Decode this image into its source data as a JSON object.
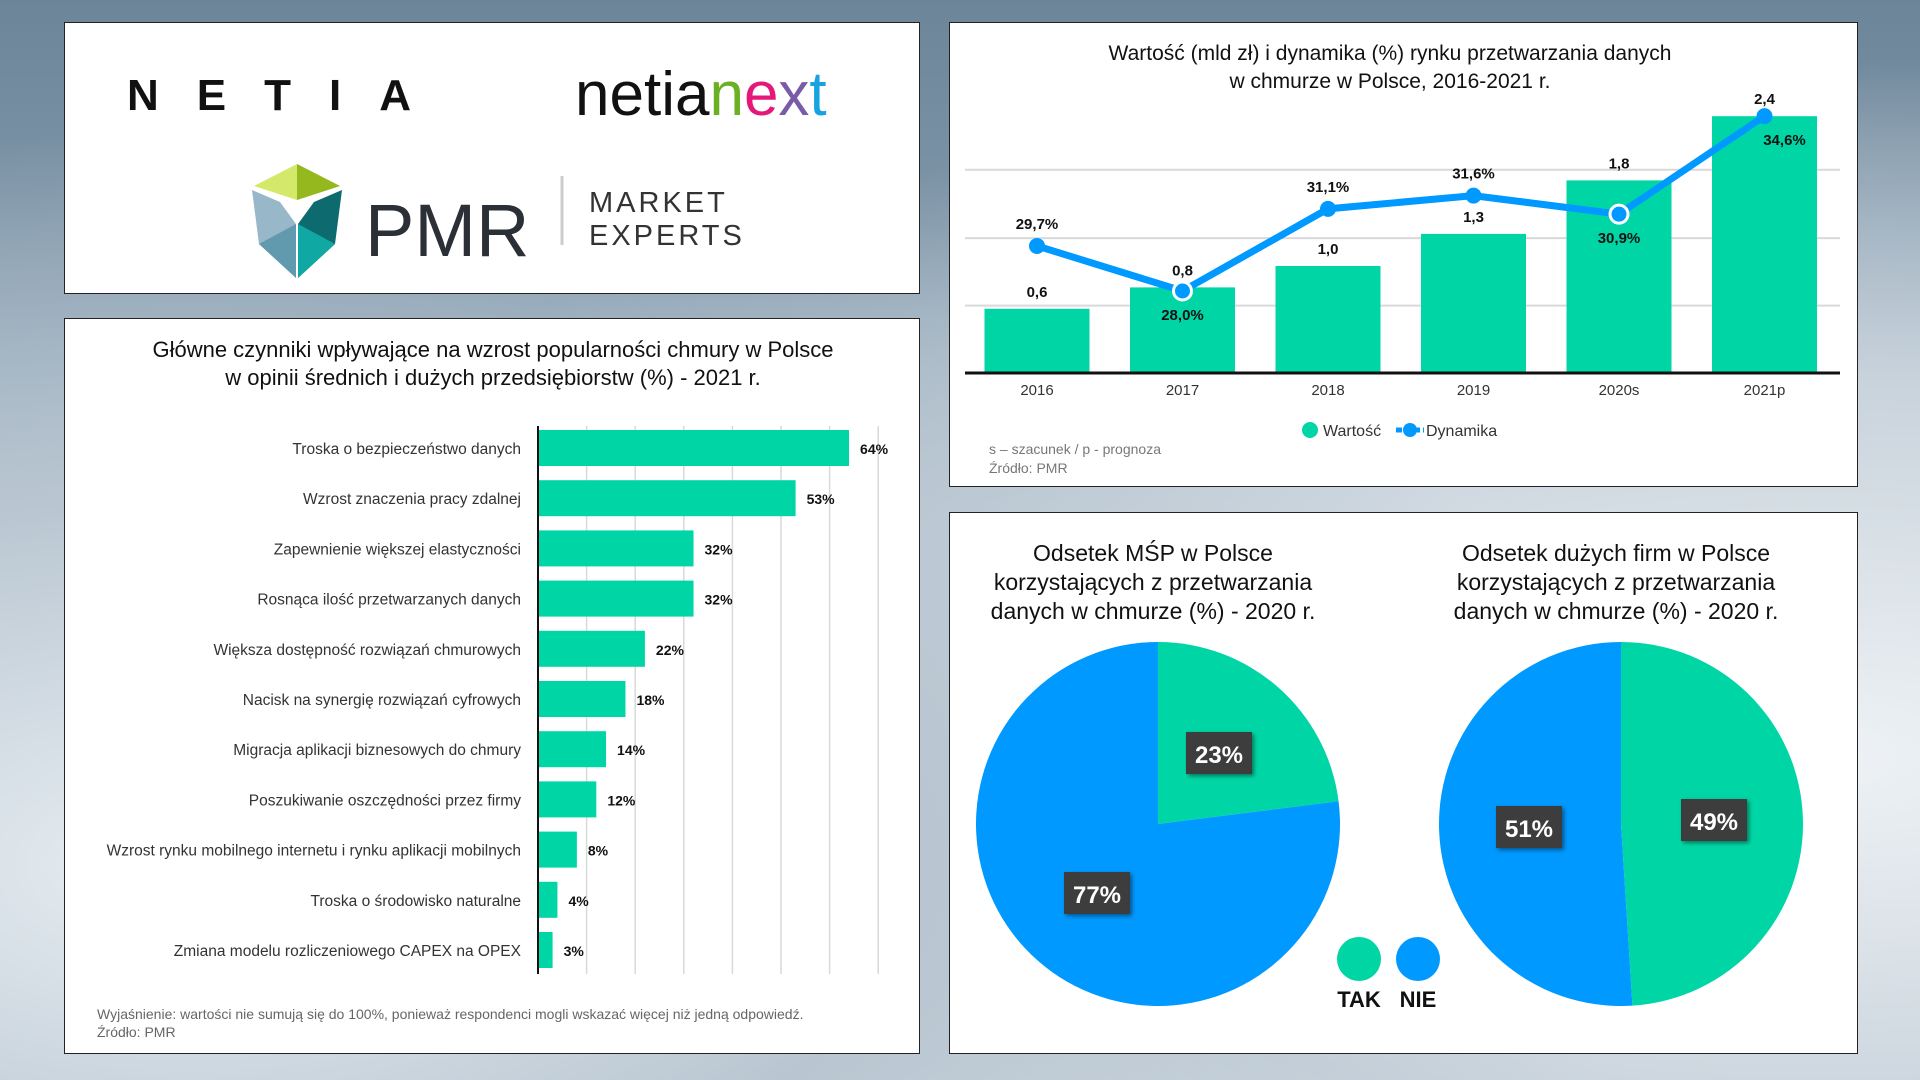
{
  "logos": {
    "netia": "NETIA",
    "netianext": [
      "netia",
      "n",
      "e",
      "x",
      "t"
    ],
    "netianext_colors": [
      "#111111",
      "#6ab023",
      "#e5187a",
      "#7a5ba7",
      "#17a2e0"
    ],
    "pmr": "PMR",
    "pmr_tag1": "MARKET",
    "pmr_tag2": "EXPERTS"
  },
  "colors": {
    "green": "#00d6a5",
    "blue": "#0099ff",
    "label_box": "#3d3d3d"
  },
  "chart_data": [
    {
      "type": "bar",
      "orientation": "horizontal",
      "title": [
        "Główne czynniki wpływające na wzrost popularności chmury w Polsce",
        "w opinii średnich i dużych przedsiębiorstw (%) - 2021 r."
      ],
      "categories": [
        "Troska o bezpieczeństwo danych",
        "Wzrost znaczenia pracy zdalnej",
        "Zapewnienie większej elastyczności",
        "Rosnąca ilość przetwarzanych danych",
        "Większa dostępność rozwiązań chmurowych",
        "Nacisk na synergię rozwiązań cyfrowych",
        "Migracja aplikacji biznesowych do chmury",
        "Poszukiwanie oszczędności przez firmy",
        "Wzrost rynku mobilnego internetu i rynku aplikacji mobilnych",
        "Troska o środowisko naturalne",
        "Zmiana modelu rozliczeniowego CAPEX na OPEX"
      ],
      "values": [
        64,
        53,
        32,
        32,
        22,
        18,
        14,
        12,
        8,
        4,
        3
      ],
      "labels": [
        "64%",
        "53%",
        "32%",
        "32%",
        "22%",
        "18%",
        "14%",
        "12%",
        "8%",
        "4%",
        "3%"
      ],
      "xlim": [
        0,
        70
      ],
      "grid": true,
      "footnote": [
        "Wyjaśnienie: wartości nie sumują się do 100%, ponieważ respondenci mogli wskazać więcej niż jedną odpowiedź.",
        "Źródło: PMR"
      ]
    },
    {
      "type": "bar+line",
      "title": [
        "Wartość (mld zł) i dynamika (%) rynku przetwarzania danych",
        "w chmurze w Polsce, 2016-2021 r."
      ],
      "categories": [
        "2016",
        "2017",
        "2018",
        "2019",
        "2020s",
        "2021p"
      ],
      "series": [
        {
          "name": "Wartość",
          "type": "bar",
          "values": [
            0.6,
            0.8,
            1.0,
            1.3,
            1.8,
            2.4
          ],
          "labels": [
            "0,6",
            "0,8",
            "1,0",
            "1,3",
            "1,8",
            "2,4"
          ]
        },
        {
          "name": "Dynamika",
          "type": "line",
          "values": [
            29.7,
            28.0,
            31.1,
            31.6,
            30.9,
            34.6
          ],
          "labels": [
            "29,7%",
            "28,0%",
            "31,1%",
            "31,6%",
            "30,9%",
            "34,6%"
          ]
        }
      ],
      "legend": "bottom",
      "grid": true,
      "footnote": [
        "s – szacunek / p - prognoza",
        "Źródło: PMR"
      ]
    },
    {
      "type": "pie",
      "title": [
        "Odsetek MŚP w Polsce",
        "korzystających z przetwarzania",
        "danych w chmurze (%) - 2020 r."
      ],
      "slices": [
        {
          "name": "TAK",
          "value": 23,
          "label": "23%"
        },
        {
          "name": "NIE",
          "value": 77,
          "label": "77%"
        }
      ]
    },
    {
      "type": "pie",
      "title": [
        "Odsetek dużych firm w Polsce",
        "korzystających z przetwarzania",
        "danych w chmurze (%) - 2020 r."
      ],
      "slices": [
        {
          "name": "TAK",
          "value": 49,
          "label": "49%"
        },
        {
          "name": "NIE",
          "value": 51,
          "label": "51%"
        }
      ]
    }
  ],
  "pie_legend": [
    {
      "name": "TAK",
      "color": "#00d6a5"
    },
    {
      "name": "NIE",
      "color": "#0099ff"
    }
  ]
}
